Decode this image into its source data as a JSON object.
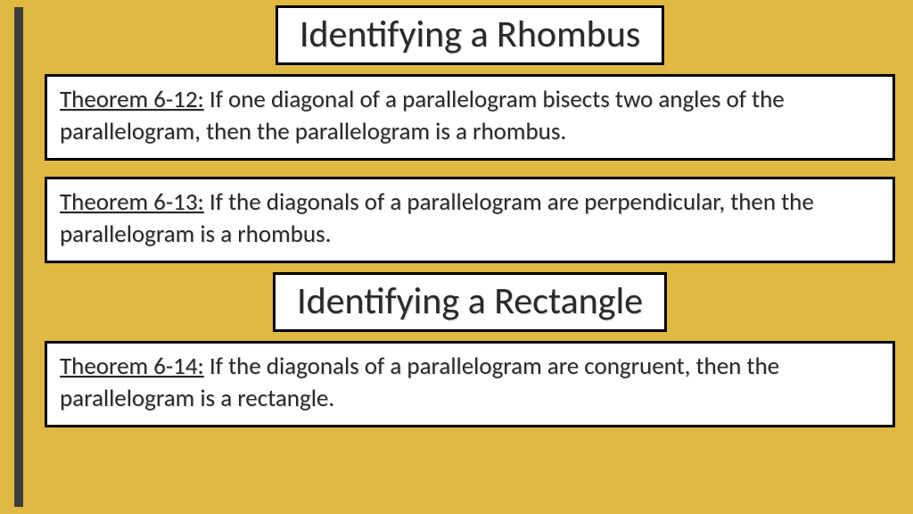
{
  "colors": {
    "background": "#e0b942",
    "stripe": "#3d3d3d",
    "box_bg": "#ffffff",
    "box_border": "#000000",
    "text": "#2a2a2a"
  },
  "heading1": "Identifying a Rhombus",
  "theorem1": {
    "label": "Theorem 6-12:",
    "body": " If one diagonal of a parallelogram bisects two angles of the parallelogram, then the parallelogram is a rhombus."
  },
  "theorem2": {
    "label": "Theorem 6-13:",
    "body": " If the diagonals of a parallelogram are perpendicular, then the parallelogram is a rhombus."
  },
  "heading2": "Identifying a Rectangle",
  "theorem3": {
    "label": "Theorem 6-14:",
    "body": " If the diagonals of a parallelogram are congruent, then the parallelogram is a rectangle."
  }
}
